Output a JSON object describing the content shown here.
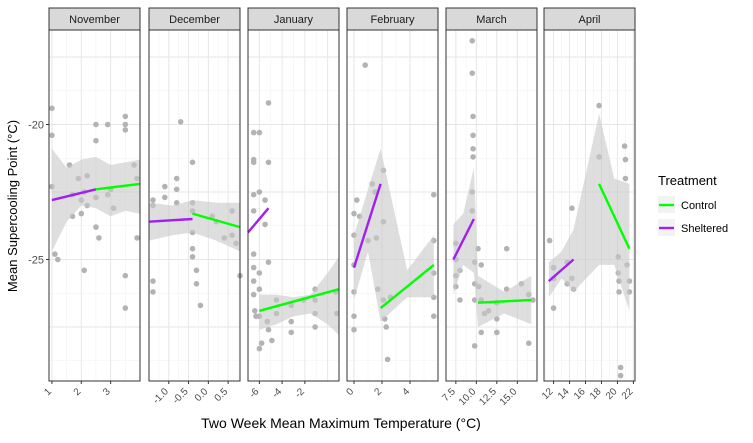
{
  "chart_data": {
    "type": "scatter",
    "xlabel": "Two Week Mean Maximum Temperature (°C)",
    "ylabel": "Mean Supercooling Point (°C)",
    "ylim": [
      -29.5,
      -16.5
    ],
    "y_ticks": [
      -20,
      -25
    ],
    "y_tick_labels": [
      "-20",
      "-25"
    ],
    "legend": {
      "title": "Treatment",
      "position": "right",
      "entries": [
        {
          "name": "Control",
          "color": "#00ff00"
        },
        {
          "name": "Sheltered",
          "color": "#a020f0"
        }
      ]
    },
    "point_color": "#b3b3b3",
    "ribbon_color": "#c8c8c8",
    "panels": [
      {
        "label": "November",
        "xlim": [
          0.9,
          4.0
        ],
        "ticks": [
          1,
          2,
          3
        ],
        "tick_labels": [
          "1",
          "2",
          "3"
        ],
        "points": [
          [
            1.0,
            -19.4
          ],
          [
            1.0,
            -20.4
          ],
          [
            1.0,
            -22.3
          ],
          [
            1.1,
            -24.8
          ],
          [
            1.2,
            -25.0
          ],
          [
            1.6,
            -21.5
          ],
          [
            1.7,
            -22.6
          ],
          [
            1.7,
            -23.4
          ],
          [
            1.9,
            -22.0
          ],
          [
            2.0,
            -22.8
          ],
          [
            2.0,
            -23.3
          ],
          [
            2.1,
            -22.5
          ],
          [
            2.1,
            -25.4
          ],
          [
            2.2,
            -21.9
          ],
          [
            2.2,
            -23.0
          ],
          [
            2.5,
            -20.0
          ],
          [
            2.5,
            -20.6
          ],
          [
            2.5,
            -22.7
          ],
          [
            2.5,
            -23.8
          ],
          [
            2.6,
            -24.2
          ],
          [
            2.9,
            -20.0
          ],
          [
            2.9,
            -22.6
          ],
          [
            3.0,
            -22.4
          ],
          [
            3.1,
            -23.1
          ],
          [
            3.5,
            -19.7
          ],
          [
            3.5,
            -20.0
          ],
          [
            3.5,
            -20.2
          ],
          [
            3.5,
            -25.6
          ],
          [
            3.5,
            -26.8
          ],
          [
            3.8,
            -21.5
          ],
          [
            3.9,
            -22.0
          ],
          [
            3.9,
            -24.2
          ]
        ],
        "fits": [
          {
            "series": "Sheltered",
            "x": [
              1.0,
              2.5
            ],
            "y": [
              -22.8,
              -22.4
            ]
          },
          {
            "series": "Control",
            "x": [
              2.5,
              4.0
            ],
            "y": [
              -22.4,
              -22.2
            ]
          }
        ],
        "ribbon": {
          "x": [
            1.0,
            1.5,
            2.0,
            2.5,
            3.0,
            3.5,
            4.0
          ],
          "lower": [
            -24.7,
            -23.6,
            -23.0,
            -23.1,
            -23.4,
            -23.2,
            -23.3
          ],
          "upper": [
            -20.9,
            -21.6,
            -21.3,
            -21.2,
            -21.5,
            -21.4,
            -21.3
          ]
        }
      },
      {
        "label": "December",
        "xlim": [
          -1.5,
          0.8
        ],
        "ticks": [
          -1.0,
          -0.5,
          0.0,
          0.5
        ],
        "tick_labels": [
          "-1.0",
          "-0.5",
          "0.0",
          "0.5"
        ],
        "points": [
          [
            -1.4,
            -22.8
          ],
          [
            -1.4,
            -23.0
          ],
          [
            -1.4,
            -25.8
          ],
          [
            -1.4,
            -26.2
          ],
          [
            -1.1,
            -22.3
          ],
          [
            -1.1,
            -22.7
          ],
          [
            -0.8,
            -22.0
          ],
          [
            -0.8,
            -22.4
          ],
          [
            -0.8,
            -22.9
          ],
          [
            -0.7,
            -19.9
          ],
          [
            -0.4,
            -21.4
          ],
          [
            -0.4,
            -22.9
          ],
          [
            -0.4,
            -23.2
          ],
          [
            -0.4,
            -24.0
          ],
          [
            -0.4,
            -24.6
          ],
          [
            -0.4,
            -24.9
          ],
          [
            -0.3,
            -25.4
          ],
          [
            -0.3,
            -25.9
          ],
          [
            -0.2,
            -26.7
          ],
          [
            0.1,
            -23.4
          ],
          [
            0.2,
            -23.6
          ],
          [
            0.4,
            -24.2
          ],
          [
            0.6,
            -23.2
          ],
          [
            0.6,
            -24.1
          ],
          [
            0.7,
            -24.4
          ],
          [
            0.8,
            -25.6
          ]
        ],
        "fits": [
          {
            "series": "Sheltered",
            "x": [
              -1.5,
              -0.4
            ],
            "y": [
              -23.6,
              -23.5
            ]
          },
          {
            "series": "Control",
            "x": [
              -0.4,
              0.8
            ],
            "y": [
              -23.3,
              -23.8
            ]
          }
        ],
        "ribbon": {
          "x": [
            -1.5,
            -0.9,
            -0.4,
            0.2,
            0.8
          ],
          "lower": [
            -24.3,
            -24.1,
            -24.0,
            -24.3,
            -24.7
          ],
          "upper": [
            -22.9,
            -23.0,
            -22.8,
            -22.9,
            -22.9
          ]
        }
      },
      {
        "label": "January",
        "xlim": [
          -7.0,
          1.0
        ],
        "ticks": [
          -6,
          -4,
          -2
        ],
        "tick_labels": [
          "-6",
          "-4",
          "-2"
        ],
        "points": [
          [
            -6.5,
            -20.3
          ],
          [
            -6.5,
            -21.3
          ],
          [
            -6.5,
            -21.4
          ],
          [
            -6.5,
            -22.6
          ],
          [
            -6.5,
            -23.2
          ],
          [
            -6.5,
            -24.8
          ],
          [
            -6.5,
            -25.3
          ],
          [
            -6.5,
            -25.8
          ],
          [
            -6.5,
            -26.3
          ],
          [
            -6.4,
            -26.9
          ],
          [
            -6.3,
            -27.1
          ],
          [
            -6.0,
            -20.3
          ],
          [
            -6.0,
            -22.5
          ],
          [
            -6.0,
            -25.5
          ],
          [
            -6.0,
            -26.1
          ],
          [
            -6.0,
            -27.1
          ],
          [
            -6.0,
            -28.3
          ],
          [
            -5.8,
            -28.1
          ],
          [
            -5.5,
            -22.8
          ],
          [
            -5.5,
            -23.7
          ],
          [
            -5.3,
            -27.3
          ],
          [
            -5.2,
            -19.2
          ],
          [
            -5.2,
            -21.4
          ],
          [
            -5.2,
            -25.1
          ],
          [
            -5.2,
            -27.6
          ],
          [
            -4.9,
            -28.0
          ],
          [
            -4.5,
            -26.5
          ],
          [
            -4.5,
            -27.0
          ],
          [
            -3.2,
            -26.7
          ],
          [
            -3.2,
            -27.3
          ],
          [
            -3.2,
            -27.7
          ],
          [
            -2.1,
            -26.5
          ],
          [
            -1.1,
            -26.1
          ],
          [
            -1.1,
            -26.5
          ],
          [
            -1.1,
            -27.0
          ],
          [
            -1.1,
            -27.5
          ],
          [
            0.7,
            -26.2
          ],
          [
            0.8,
            -27.0
          ]
        ],
        "fits": [
          {
            "series": "Sheltered",
            "x": [
              -7.0,
              -5.2
            ],
            "y": [
              -24.0,
              -23.1
            ]
          },
          {
            "series": "Control",
            "x": [
              -6.0,
              1.0
            ],
            "y": [
              -26.9,
              -26.1
            ]
          }
        ],
        "ribbon": {
          "x": [
            -6.0,
            -4.5,
            -3.0,
            -1.5,
            0.0,
            1.0
          ],
          "lower": [
            -27.6,
            -27.4,
            -27.1,
            -27.0,
            -27.4,
            -27.8
          ],
          "upper": [
            -26.3,
            -26.3,
            -26.4,
            -26.3,
            -25.5,
            -24.9
          ]
        }
      },
      {
        "label": "February",
        "xlim": [
          -0.5,
          6.0
        ],
        "ticks": [
          0,
          2,
          4
        ],
        "tick_labels": [
          "0",
          "2",
          "4"
        ],
        "points": [
          [
            0.0,
            -23.3
          ],
          [
            0.0,
            -24.1
          ],
          [
            0.0,
            -25.2
          ],
          [
            0.0,
            -26.2
          ],
          [
            0.0,
            -27.1
          ],
          [
            0.0,
            -27.6
          ],
          [
            0.2,
            -22.8
          ],
          [
            0.4,
            -23.4
          ],
          [
            0.8,
            -17.8
          ],
          [
            1.0,
            -24.3
          ],
          [
            1.3,
            -22.2
          ],
          [
            1.5,
            -22.5
          ],
          [
            1.6,
            -24.2
          ],
          [
            1.7,
            -26.1
          ],
          [
            2.1,
            -21.7
          ],
          [
            2.1,
            -23.6
          ],
          [
            2.1,
            -26.5
          ],
          [
            2.2,
            -27.2
          ],
          [
            2.3,
            -27.5
          ],
          [
            2.4,
            -28.7
          ],
          [
            2.6,
            -26.4
          ],
          [
            5.7,
            -22.6
          ],
          [
            5.7,
            -24.3
          ],
          [
            5.7,
            -25.5
          ],
          [
            5.7,
            -26.4
          ],
          [
            5.7,
            -27.1
          ]
        ],
        "fits": [
          {
            "series": "Sheltered",
            "x": [
              0.0,
              1.9
            ],
            "y": [
              -25.3,
              -22.2
            ]
          },
          {
            "series": "Control",
            "x": [
              1.9,
              5.7
            ],
            "y": [
              -26.8,
              -25.2
            ]
          }
        ],
        "ribbon": {
          "x": [
            0.0,
            1.0,
            1.9,
            3.8,
            5.7
          ],
          "lower": [
            -26.5,
            -24.7,
            -27.3,
            -26.4,
            -26.4
          ],
          "upper": [
            -24.1,
            -22.4,
            -20.9,
            -25.4,
            -24.1
          ]
        }
      },
      {
        "label": "March",
        "xlim": [
          6.3,
          17.4
        ],
        "ticks": [
          7.5,
          10.0,
          12.5,
          15.0
        ],
        "tick_labels": [
          "7.5",
          "10.0",
          "12.5",
          "15.0"
        ],
        "points": [
          [
            7.5,
            -24.4
          ],
          [
            7.5,
            -25.0
          ],
          [
            7.5,
            -25.6
          ],
          [
            7.5,
            -26.0
          ],
          [
            8.0,
            -25.4
          ],
          [
            8.0,
            -26.5
          ],
          [
            9.5,
            -22.5
          ],
          [
            9.5,
            -23.2
          ],
          [
            9.5,
            -16.9
          ],
          [
            9.5,
            -18.1
          ],
          [
            9.6,
            -19.7
          ],
          [
            9.6,
            -20.4
          ],
          [
            9.6,
            -20.9
          ],
          [
            9.6,
            -21.2
          ],
          [
            9.8,
            -25.1
          ],
          [
            9.8,
            -25.9
          ],
          [
            9.8,
            -26.5
          ],
          [
            9.8,
            -28.2
          ],
          [
            10.2,
            -24.6
          ],
          [
            10.3,
            -26.0
          ],
          [
            10.6,
            -26.5
          ],
          [
            10.6,
            -27.7
          ],
          [
            10.6,
            -25.2
          ],
          [
            11.0,
            -27.0
          ],
          [
            11.5,
            -26.9
          ],
          [
            12.5,
            -26.6
          ],
          [
            12.5,
            -27.2
          ],
          [
            12.5,
            -27.7
          ],
          [
            13.7,
            -24.6
          ],
          [
            13.7,
            -26.1
          ],
          [
            15.5,
            -25.9
          ],
          [
            16.4,
            -26.3
          ],
          [
            16.4,
            -28.1
          ],
          [
            16.9,
            -26.5
          ]
        ],
        "fits": [
          {
            "series": "Sheltered",
            "x": [
              7.2,
              9.7
            ],
            "y": [
              -25.0,
              -23.5
            ]
          },
          {
            "series": "Control",
            "x": [
              10.2,
              16.7
            ],
            "y": [
              -26.6,
              -26.5
            ]
          }
        ],
        "ribbon": {
          "x": [
            7.2,
            8.4,
            9.7,
            10.2,
            13.4,
            16.7
          ],
          "lower": [
            -26.3,
            -25.2,
            -25.5,
            -27.5,
            -27.0,
            -27.4
          ],
          "upper": [
            -23.7,
            -23.3,
            -21.6,
            -25.6,
            -26.2,
            -25.6
          ]
        }
      },
      {
        "label": "April",
        "xlim": [
          10.8,
          22.2
        ],
        "ticks": [
          12,
          14,
          16,
          18,
          20,
          22
        ],
        "tick_labels": [
          "12",
          "14",
          "16",
          "18",
          "20",
          "22"
        ],
        "points": [
          [
            11.5,
            -24.3
          ],
          [
            12.0,
            -25.3
          ],
          [
            12.0,
            -25.7
          ],
          [
            12.0,
            -26.8
          ],
          [
            13.7,
            -25.1
          ],
          [
            13.7,
            -25.9
          ],
          [
            14.3,
            -23.1
          ],
          [
            14.3,
            -25.7
          ],
          [
            14.5,
            -26.1
          ],
          [
            17.7,
            -19.3
          ],
          [
            17.7,
            -21.2
          ],
          [
            20.1,
            -24.9
          ],
          [
            20.1,
            -25.5
          ],
          [
            20.2,
            -25.8
          ],
          [
            20.2,
            -26.2
          ],
          [
            20.4,
            -29.0
          ],
          [
            20.4,
            -29.3
          ],
          [
            20.9,
            -20.8
          ],
          [
            21.0,
            -21.3
          ],
          [
            21.0,
            -22.0
          ],
          [
            21.2,
            -25.2
          ],
          [
            21.5,
            -25.8
          ],
          [
            21.5,
            -26.2
          ]
        ],
        "fits": [
          {
            "series": "Sheltered",
            "x": [
              11.4,
              14.5
            ],
            "y": [
              -25.8,
              -25.0
            ]
          },
          {
            "series": "Control",
            "x": [
              17.7,
              21.5
            ],
            "y": [
              -22.2,
              -24.6
            ]
          }
        ],
        "ribbon": {
          "x": [
            11.4,
            13.0,
            14.5,
            17.7,
            19.6,
            21.5
          ],
          "lower": [
            -26.4,
            -25.7,
            -26.2,
            -25.2,
            -25.2,
            -26.9
          ],
          "upper": [
            -25.1,
            -24.7,
            -23.9,
            -19.6,
            -22.0,
            -22.2
          ]
        }
      }
    ]
  }
}
